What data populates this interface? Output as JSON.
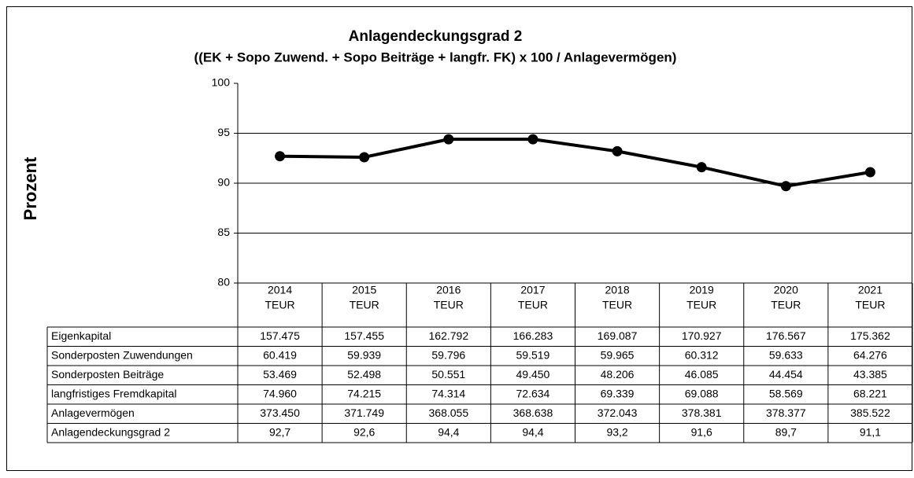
{
  "chart_data": {
    "type": "line",
    "title": "Anlagendeckungsgrad 2",
    "subtitle": "((EK + Sopo Zuwend.  + Sopo Beiträge + langfr. FK) x 100 / Anlagevermögen)",
    "ylabel": "Prozent",
    "categories": [
      "2014",
      "2015",
      "2016",
      "2017",
      "2018",
      "2019",
      "2020",
      "2021"
    ],
    "category_unit": "TEUR",
    "series": [
      {
        "name": "Anlagendeckungsgrad 2",
        "color": "#000000",
        "values": [
          92.7,
          92.6,
          94.4,
          94.4,
          93.2,
          91.6,
          89.7,
          91.1
        ],
        "value_labels": [
          "92,7",
          "92,6",
          "94,4",
          "94,4",
          "93,2",
          "91,6",
          "89,7",
          "91,1"
        ]
      }
    ],
    "ylim": [
      80,
      100
    ],
    "yticks": [
      80,
      85,
      90,
      95,
      100
    ],
    "grid": true,
    "data_table": {
      "rows": [
        {
          "name": "Eigenkapital",
          "values": [
            "157.475",
            "157.455",
            "162.792",
            "166.283",
            "169.087",
            "170.927",
            "176.567",
            "175.362"
          ]
        },
        {
          "name": "Sonderposten Zuwendungen",
          "values": [
            "60.419",
            "59.939",
            "59.796",
            "59.519",
            "59.965",
            "60.312",
            "59.633",
            "64.276"
          ]
        },
        {
          "name": "Sonderposten Beiträge",
          "values": [
            "53.469",
            "52.498",
            "50.551",
            "49.450",
            "48.206",
            "46.085",
            "44.454",
            "43.385"
          ]
        },
        {
          "name": "langfristiges Fremdkapital",
          "values": [
            "74.960",
            "74.215",
            "74.314",
            "72.634",
            "69.339",
            "69.088",
            "58.569",
            "68.221"
          ]
        },
        {
          "name": "Anlagevermögen",
          "values": [
            "373.450",
            "371.749",
            "368.055",
            "368.638",
            "372.043",
            "378.381",
            "378.377",
            "385.522"
          ]
        }
      ]
    }
  }
}
